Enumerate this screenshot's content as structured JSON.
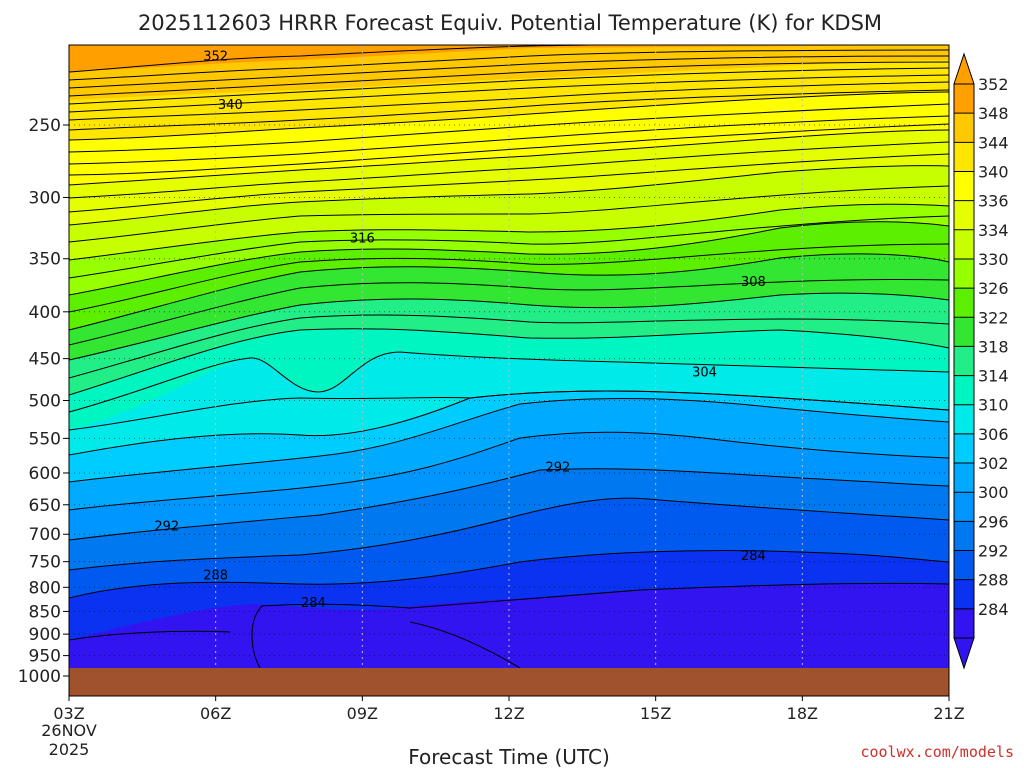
{
  "chart_data": {
    "type": "contour",
    "title": "2025112603 HRRR Forecast Equiv. Potential Temperature (K) for KDSM",
    "xlabel": "Forecast Time (UTC)",
    "x_ticks": [
      "03Z",
      "06Z",
      "09Z",
      "12Z",
      "15Z",
      "18Z",
      "21Z"
    ],
    "x_date_label": [
      "26NOV",
      "2025"
    ],
    "y_ticks": [
      250,
      300,
      350,
      400,
      450,
      500,
      550,
      600,
      650,
      700,
      750,
      800,
      850,
      900,
      950,
      1000
    ],
    "y_scale": "log-pressure (hPa), reversed",
    "ylim": [
      1025,
      200
    ],
    "colorbar_ticks": [
      352,
      348,
      344,
      340,
      336,
      334,
      330,
      326,
      322,
      318,
      314,
      310,
      306,
      302,
      300,
      296,
      292,
      288,
      284
    ],
    "colorbar_colors": [
      "#ffa000",
      "#ffc800",
      "#ffe600",
      "#ffff00",
      "#e6ff00",
      "#c8ff00",
      "#96ff00",
      "#5cf000",
      "#32e632",
      "#22ee88",
      "#00f6c0",
      "#00eaea",
      "#00cdff",
      "#00aaff",
      "#0096ff",
      "#0078f0",
      "#005af0",
      "#0a32f0",
      "#3214f0"
    ],
    "contour_labels": [
      {
        "text": "352",
        "x": "03Z+3.0h",
        "p": 210
      },
      {
        "text": "340",
        "x": "03Z+3.3h",
        "p": 237
      },
      {
        "text": "316",
        "x": "09Z",
        "p": 332
      },
      {
        "text": "308",
        "x": "17Z",
        "p": 370
      },
      {
        "text": "304",
        "x": "16Z",
        "p": 465
      },
      {
        "text": "292",
        "x": "12Z+1.0h",
        "p": 590
      },
      {
        "text": "292",
        "x": "05Z",
        "p": 685
      },
      {
        "text": "288",
        "x": "06Z",
        "p": 775
      },
      {
        "text": "284",
        "x": "08Z",
        "p": 830
      },
      {
        "text": "284",
        "x": "17Z",
        "p": 738
      }
    ],
    "grid": true,
    "terrain_color": "#a0522d"
  },
  "footer": {
    "credit": "coolwx.com/models"
  }
}
